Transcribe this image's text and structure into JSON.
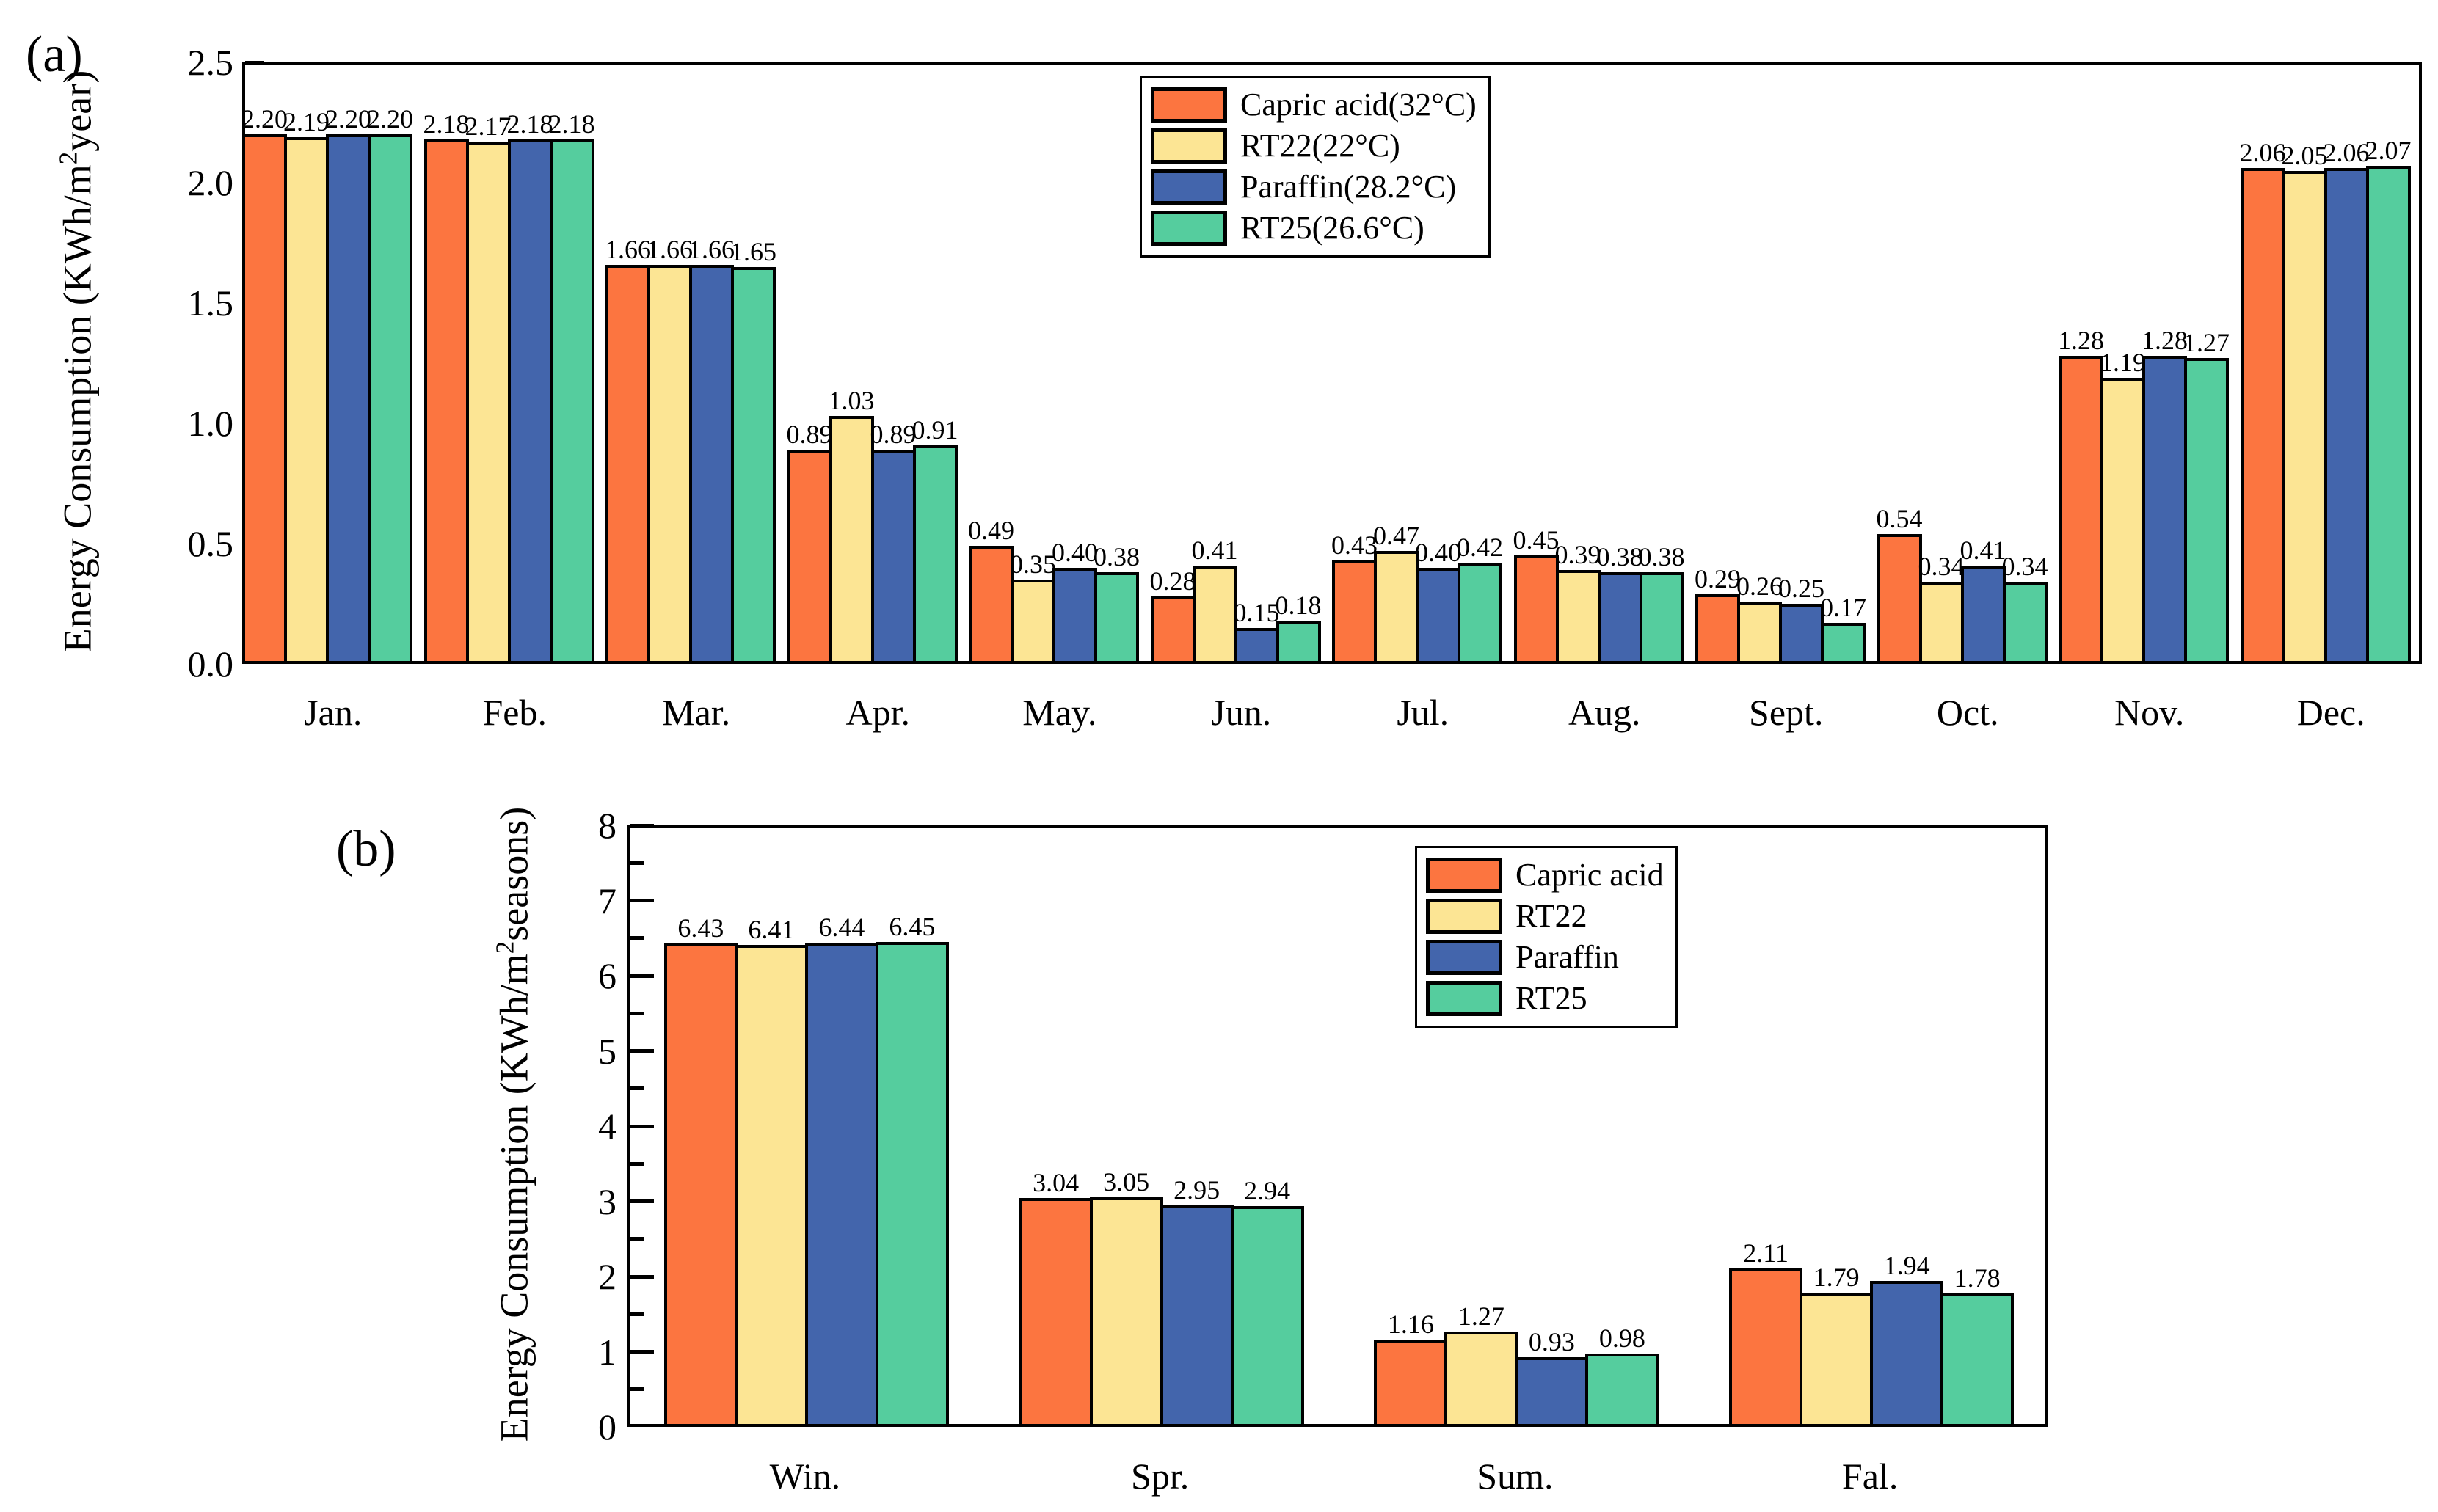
{
  "figure": {
    "panel_a_label": "(a)",
    "panel_b_label": "(b)"
  },
  "colors": {
    "capric_acid": "#FC7540",
    "rt22": "#FCE594",
    "paraffin": "#4365AC",
    "rt25": "#55CD9E",
    "outline": "#000000"
  },
  "chart_data": [
    {
      "type": "bar",
      "panel_label": "(a)",
      "title": "",
      "xlabel": "",
      "ylabel_pre": "Energy Consumption (KWh/m",
      "ylabel_sup": "2",
      "ylabel_post": "year)",
      "ylim": [
        0,
        2.5
      ],
      "yticks": [
        0,
        0.5,
        1,
        1.5,
        2,
        2.5
      ],
      "ytick_labels": [
        "0.0",
        "0.5",
        "1.0",
        "1.5",
        "2.0",
        "2.5"
      ],
      "minor_tick_step": null,
      "grid": false,
      "legend_position": "top-center",
      "value_label_decimals": 2,
      "categories": [
        "Jan.",
        "Feb.",
        "Mar.",
        "Apr.",
        "May.",
        "Jun.",
        "Jul.",
        "Aug.",
        "Sept.",
        "Oct.",
        "Nov.",
        "Dec."
      ],
      "series": [
        {
          "name": "Capric acid(32°C)",
          "color": "#FC7540",
          "values": [
            2.2,
            2.18,
            1.66,
            0.89,
            0.49,
            0.28,
            0.43,
            0.45,
            0.29,
            0.54,
            1.28,
            2.06
          ]
        },
        {
          "name": "RT22(22°C)",
          "color": "#FCE594",
          "values": [
            2.19,
            2.17,
            1.66,
            1.03,
            0.35,
            0.41,
            0.47,
            0.39,
            0.26,
            0.34,
            1.19,
            2.05
          ]
        },
        {
          "name": "Paraffin(28.2°C)",
          "color": "#4365AC",
          "values": [
            2.2,
            2.18,
            1.66,
            0.89,
            0.4,
            0.15,
            0.4,
            0.38,
            0.25,
            0.41,
            1.28,
            2.06
          ]
        },
        {
          "name": "RT25(26.6°C)",
          "color": "#55CD9E",
          "values": [
            2.2,
            2.18,
            1.65,
            0.91,
            0.38,
            0.18,
            0.42,
            0.38,
            0.17,
            0.34,
            1.27,
            2.07
          ]
        }
      ]
    },
    {
      "type": "bar",
      "panel_label": "(b)",
      "title": "",
      "xlabel": "",
      "ylabel_pre": "Energy Consumption (KWh/m",
      "ylabel_sup": "2",
      "ylabel_post": "seasons)",
      "ylim": [
        0,
        8
      ],
      "yticks": [
        0,
        1,
        2,
        3,
        4,
        5,
        6,
        7,
        8
      ],
      "ytick_labels": [
        "0",
        "1",
        "2",
        "3",
        "4",
        "5",
        "6",
        "7",
        "8"
      ],
      "minor_tick_step": 0.5,
      "grid": false,
      "legend_position": "top-right",
      "value_label_decimals": 2,
      "categories": [
        "Win.",
        "Spr.",
        "Sum.",
        "Fal."
      ],
      "series": [
        {
          "name": "Capric acid",
          "color": "#FC7540",
          "values": [
            6.43,
            3.04,
            1.16,
            2.11
          ]
        },
        {
          "name": "RT22",
          "color": "#FCE594",
          "values": [
            6.41,
            3.05,
            1.27,
            1.79
          ]
        },
        {
          "name": "Paraffin",
          "color": "#4365AC",
          "values": [
            6.44,
            2.95,
            0.93,
            1.94
          ]
        },
        {
          "name": "RT25",
          "color": "#55CD9E",
          "values": [
            6.45,
            2.94,
            0.98,
            1.78
          ]
        }
      ]
    }
  ]
}
